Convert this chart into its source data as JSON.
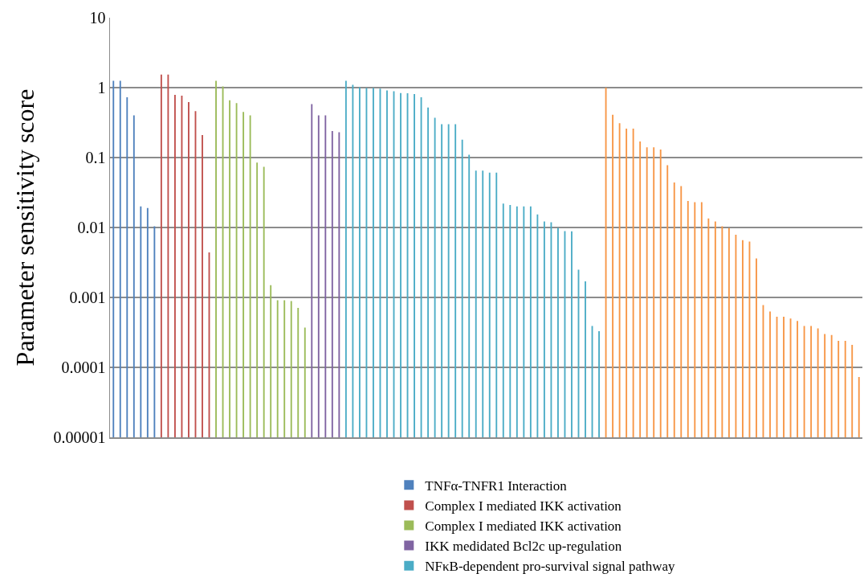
{
  "chart_data": {
    "type": "bar",
    "ylabel": "Parameter sensitivity score",
    "log": "y",
    "ylim": [
      1e-05,
      10
    ],
    "yticks": [
      {
        "value": 1e-05,
        "label": "0.00001"
      },
      0.0001,
      0.001,
      0.01,
      0.1,
      1,
      10
    ],
    "grid": "y",
    "legend": "bottom",
    "tick_labels": "y",
    "categories": [
      null,
      null,
      null,
      null,
      null,
      null,
      null,
      null,
      null,
      null,
      null,
      null,
      null,
      null,
      null,
      null,
      null,
      null,
      null,
      null,
      null,
      null,
      null,
      null,
      null,
      null,
      null,
      null,
      null,
      null,
      null,
      null,
      null,
      null,
      null,
      null,
      null,
      null,
      null,
      null,
      null,
      null,
      null,
      null,
      null,
      null,
      null,
      null,
      null,
      null,
      null,
      null,
      null,
      null,
      null,
      null,
      null,
      null,
      null,
      null,
      null,
      null,
      null,
      null,
      null,
      null,
      null,
      null,
      null,
      null,
      null,
      null,
      null,
      null,
      null,
      null,
      null,
      null,
      null,
      null,
      null,
      null,
      null,
      null,
      null,
      null,
      null,
      null,
      null,
      null,
      null,
      null,
      null,
      null,
      null,
      null,
      null,
      null,
      null,
      null,
      null,
      null,
      null,
      null,
      null,
      null,
      null,
      null,
      null,
      null
    ],
    "series": [
      {
        "name": "TNFα-TNFR1 Interaction",
        "color": "#4f81bd",
        "values": [
          1.25,
          1.25,
          0.73,
          0.4,
          0.02,
          0.019,
          0.0104,
          null,
          null,
          null,
          null,
          null,
          null,
          null,
          null,
          null,
          null,
          null,
          null,
          null,
          null,
          null,
          null,
          null,
          null,
          null,
          null,
          null,
          null,
          null,
          null,
          null,
          null,
          null,
          null,
          null,
          null,
          null,
          null,
          null,
          null,
          null,
          null,
          null,
          null,
          null,
          null,
          null,
          null,
          null,
          null,
          null,
          null,
          null,
          null,
          null,
          null,
          null,
          null,
          null,
          null,
          null,
          null,
          null,
          null,
          null,
          null,
          null,
          null,
          null,
          null,
          null,
          null,
          null,
          null,
          null,
          null,
          null,
          null,
          null,
          null,
          null,
          null,
          null,
          null,
          null,
          null,
          null,
          null,
          null,
          null,
          null,
          null,
          null,
          null,
          null,
          null,
          null,
          null,
          null,
          null,
          null,
          null,
          null,
          null,
          null,
          null,
          null,
          null,
          null
        ]
      },
      {
        "name": "Complex I mediated IKK activation",
        "color": "#c0504d",
        "values": [
          null,
          null,
          null,
          null,
          null,
          null,
          null,
          1.54,
          1.54,
          0.79,
          0.77,
          0.62,
          0.46,
          0.21,
          0.0044,
          null,
          null,
          null,
          null,
          null,
          null,
          null,
          null,
          null,
          null,
          null,
          null,
          null,
          null,
          null,
          null,
          null,
          null,
          null,
          null,
          null,
          null,
          null,
          null,
          null,
          null,
          null,
          null,
          null,
          null,
          null,
          null,
          null,
          null,
          null,
          null,
          null,
          null,
          null,
          null,
          null,
          null,
          null,
          null,
          null,
          null,
          null,
          null,
          null,
          null,
          null,
          null,
          null,
          null,
          null,
          null,
          null,
          null,
          null,
          null,
          null,
          null,
          null,
          null,
          null,
          null,
          null,
          null,
          null,
          null,
          null,
          null,
          null,
          null,
          null,
          null,
          null,
          null,
          null,
          null,
          null,
          null,
          null,
          null,
          null,
          null,
          null,
          null,
          null,
          null,
          null,
          null,
          null,
          null,
          null
        ]
      },
      {
        "name": "Complex I mediated IKK activation",
        "color": "#9bbb59",
        "values": [
          null,
          null,
          null,
          null,
          null,
          null,
          null,
          null,
          null,
          null,
          null,
          null,
          null,
          null,
          null,
          1.25,
          1.04,
          0.66,
          0.6,
          0.45,
          0.4,
          0.085,
          0.074,
          0.0015,
          0.00091,
          0.00091,
          0.00089,
          0.00071,
          0.00037,
          null,
          null,
          null,
          null,
          null,
          null,
          null,
          null,
          null,
          null,
          null,
          null,
          null,
          null,
          null,
          null,
          null,
          null,
          null,
          null,
          null,
          null,
          null,
          null,
          null,
          null,
          null,
          null,
          null,
          null,
          null,
          null,
          null,
          null,
          null,
          null,
          null,
          null,
          null,
          null,
          null,
          null,
          null,
          null,
          null,
          null,
          null,
          null,
          null,
          null,
          null,
          null,
          null,
          null,
          null,
          null,
          null,
          null,
          null,
          null,
          null,
          null,
          null,
          null,
          null,
          null,
          null,
          null,
          null,
          null,
          null,
          null,
          null,
          null,
          null,
          null,
          null,
          null,
          null,
          null,
          null
        ]
      },
      {
        "name": "IKK medidated Bcl2c up-regulation",
        "color": "#8064a2",
        "values": [
          null,
          null,
          null,
          null,
          null,
          null,
          null,
          null,
          null,
          null,
          null,
          null,
          null,
          null,
          null,
          null,
          null,
          null,
          null,
          null,
          null,
          null,
          null,
          null,
          null,
          null,
          null,
          null,
          null,
          0.58,
          0.4,
          0.4,
          0.24,
          0.23,
          null,
          null,
          null,
          null,
          null,
          null,
          null,
          null,
          null,
          null,
          null,
          null,
          null,
          null,
          null,
          null,
          null,
          null,
          null,
          null,
          null,
          null,
          null,
          null,
          null,
          null,
          null,
          null,
          null,
          null,
          null,
          null,
          null,
          null,
          null,
          null,
          null,
          null,
          null,
          null,
          null,
          null,
          null,
          null,
          null,
          null,
          null,
          null,
          null,
          null,
          null,
          null,
          null,
          null,
          null,
          null,
          null,
          null,
          null,
          null,
          null,
          null,
          null,
          null,
          null,
          null,
          null,
          null,
          null,
          null,
          null,
          null,
          null,
          null,
          null,
          null
        ]
      },
      {
        "name": "NFκB-dependent pro-survival signal pathway",
        "color": "#4bacc6",
        "values": [
          null,
          null,
          null,
          null,
          null,
          null,
          null,
          null,
          null,
          null,
          null,
          null,
          null,
          null,
          null,
          null,
          null,
          null,
          null,
          null,
          null,
          null,
          null,
          null,
          null,
          null,
          null,
          null,
          null,
          null,
          null,
          null,
          null,
          null,
          1.25,
          1.1,
          1.01,
          0.99,
          0.99,
          0.97,
          0.91,
          0.89,
          0.835,
          0.83,
          0.81,
          0.73,
          0.52,
          0.37,
          0.3,
          0.3,
          0.3,
          0.18,
          0.11,
          0.065,
          0.065,
          0.061,
          0.061,
          0.022,
          0.021,
          0.02,
          0.02,
          0.02,
          0.0154,
          0.0122,
          0.0119,
          0.0099,
          0.0089,
          0.0088,
          0.0025,
          0.0017,
          0.00039,
          0.00033,
          null,
          null,
          null,
          null,
          null,
          null,
          null,
          null,
          null,
          null,
          null,
          null,
          null,
          null,
          null,
          null,
          null,
          null,
          null,
          null,
          null,
          null,
          null,
          null,
          null,
          null,
          null,
          null,
          null,
          null,
          null,
          null,
          null,
          null,
          null,
          null,
          null,
          null
        ]
      },
      {
        "color": "#f79646",
        "values": [
          null,
          null,
          null,
          null,
          null,
          null,
          null,
          null,
          null,
          null,
          null,
          null,
          null,
          null,
          null,
          null,
          null,
          null,
          null,
          null,
          null,
          null,
          null,
          null,
          null,
          null,
          null,
          null,
          null,
          null,
          null,
          null,
          null,
          null,
          null,
          null,
          null,
          null,
          null,
          null,
          null,
          null,
          null,
          null,
          null,
          null,
          null,
          null,
          null,
          null,
          null,
          null,
          null,
          null,
          null,
          null,
          null,
          null,
          null,
          null,
          null,
          null,
          null,
          null,
          null,
          null,
          null,
          null,
          null,
          null,
          null,
          null,
          1.0,
          0.41,
          0.31,
          0.26,
          0.26,
          0.17,
          0.14,
          0.14,
          0.13,
          0.078,
          0.044,
          0.039,
          0.024,
          0.023,
          0.023,
          0.0135,
          0.0122,
          0.0104,
          0.0098,
          0.0079,
          0.0066,
          0.0063,
          0.0036,
          0.00078,
          0.00063,
          0.00053,
          0.00053,
          0.0005,
          0.00046,
          0.00039,
          0.00039,
          0.00036,
          0.0003,
          0.00029,
          0.00024,
          0.00024,
          0.00021,
          7.3e-05
        ]
      }
    ]
  }
}
